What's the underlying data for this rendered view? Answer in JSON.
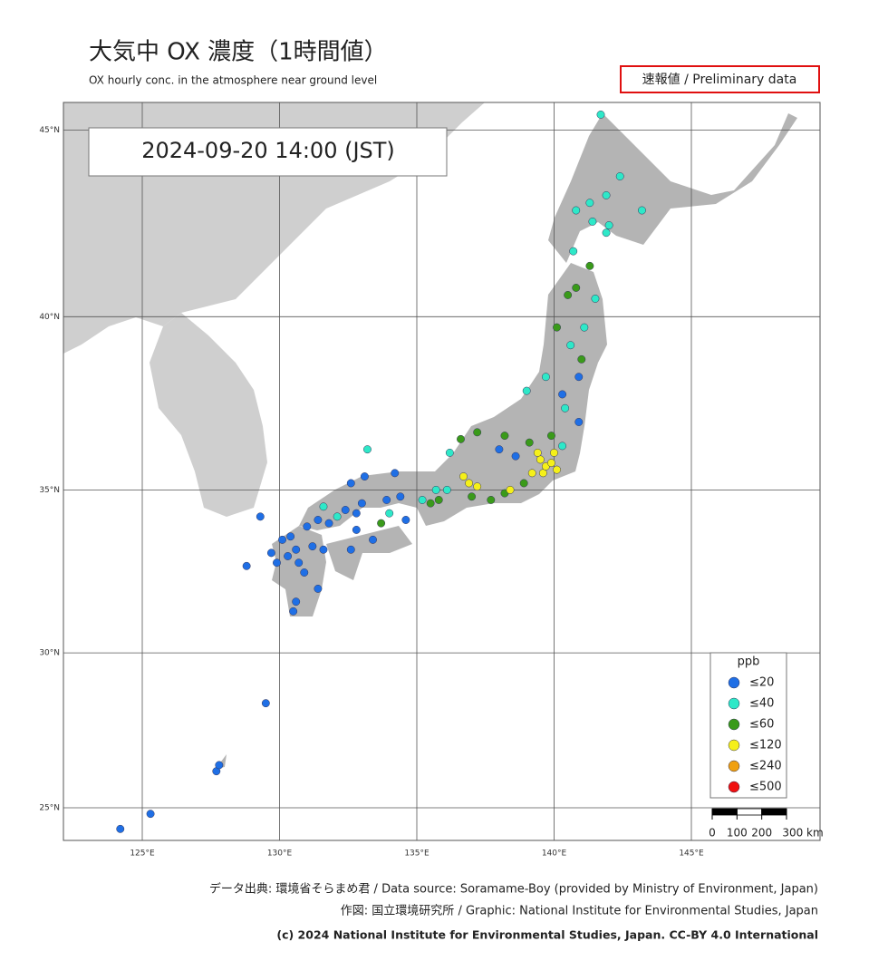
{
  "header": {
    "title": "大気中 OX 濃度（1時間値）",
    "subtitle": "OX hourly conc. in the atmosphere near ground level",
    "badge": "速報値 / Preliminary data"
  },
  "timestamp": "2024-09-20  14:00 (JST)",
  "map": {
    "lat_ticks": [
      {
        "value": 45,
        "label": "45°N"
      },
      {
        "value": 40,
        "label": "40°N"
      },
      {
        "value": 35,
        "label": "35°N"
      },
      {
        "value": 30,
        "label": "30°N"
      },
      {
        "value": 25,
        "label": "25°N"
      }
    ],
    "lon_ticks": [
      {
        "value": 125,
        "label": "125°E"
      },
      {
        "value": 130,
        "label": "130°E"
      },
      {
        "value": 135,
        "label": "135°E"
      },
      {
        "value": 140,
        "label": "140°E"
      },
      {
        "value": 145,
        "label": "145°E"
      }
    ],
    "grid": true,
    "stations": [
      [
        130.4,
        33.6,
        0
      ],
      [
        130.6,
        33.2,
        0
      ],
      [
        130.3,
        33.0,
        0
      ],
      [
        130.7,
        32.8,
        0
      ],
      [
        130.9,
        32.5,
        0
      ],
      [
        131.2,
        33.3,
        0
      ],
      [
        131.6,
        33.2,
        0
      ],
      [
        131.4,
        32.0,
        0
      ],
      [
        130.6,
        31.6,
        0
      ],
      [
        130.5,
        31.3,
        0
      ],
      [
        129.9,
        32.8,
        0
      ],
      [
        129.7,
        33.1,
        0
      ],
      [
        130.1,
        33.5,
        0
      ],
      [
        131.0,
        33.9,
        0
      ],
      [
        131.4,
        34.1,
        0
      ],
      [
        131.8,
        34.0,
        0
      ],
      [
        132.4,
        34.4,
        0
      ],
      [
        132.8,
        34.3,
        0
      ],
      [
        133.0,
        34.6,
        0
      ],
      [
        133.9,
        34.7,
        0
      ],
      [
        134.4,
        34.8,
        0
      ],
      [
        132.1,
        34.2,
        1
      ],
      [
        131.6,
        34.5,
        1
      ],
      [
        132.6,
        35.2,
        0
      ],
      [
        133.1,
        35.4,
        0
      ],
      [
        134.2,
        35.5,
        0
      ],
      [
        133.4,
        33.5,
        0
      ],
      [
        134.0,
        34.3,
        1
      ],
      [
        133.7,
        34.0,
        2
      ],
      [
        132.8,
        33.8,
        0
      ],
      [
        132.6,
        33.2,
        0
      ],
      [
        134.6,
        34.1,
        0
      ],
      [
        135.2,
        34.7,
        1
      ],
      [
        135.5,
        34.6,
        2
      ],
      [
        135.7,
        35.0,
        1
      ],
      [
        135.8,
        34.7,
        2
      ],
      [
        136.1,
        35.0,
        1
      ],
      [
        136.9,
        35.2,
        3
      ],
      [
        136.7,
        35.4,
        3
      ],
      [
        137.2,
        35.1,
        3
      ],
      [
        137.0,
        34.8,
        2
      ],
      [
        137.7,
        34.7,
        2
      ],
      [
        138.2,
        34.9,
        2
      ],
      [
        138.4,
        35.0,
        3
      ],
      [
        138.9,
        35.2,
        2
      ],
      [
        139.2,
        35.5,
        3
      ],
      [
        139.6,
        35.5,
        3
      ],
      [
        139.7,
        35.7,
        3
      ],
      [
        139.9,
        35.8,
        3
      ],
      [
        140.1,
        35.6,
        3
      ],
      [
        139.5,
        35.9,
        3
      ],
      [
        139.4,
        36.1,
        3
      ],
      [
        140.0,
        36.1,
        3
      ],
      [
        140.3,
        36.3,
        1
      ],
      [
        139.9,
        36.6,
        2
      ],
      [
        139.1,
        36.4,
        2
      ],
      [
        138.2,
        36.6,
        2
      ],
      [
        137.2,
        36.7,
        2
      ],
      [
        136.6,
        36.5,
        2
      ],
      [
        136.2,
        36.1,
        1
      ],
      [
        138.0,
        36.2,
        0
      ],
      [
        138.6,
        36.0,
        0
      ],
      [
        139.0,
        37.9,
        1
      ],
      [
        139.7,
        38.3,
        1
      ],
      [
        140.3,
        37.8,
        0
      ],
      [
        140.4,
        37.4,
        1
      ],
      [
        140.9,
        37.0,
        0
      ],
      [
        140.9,
        38.3,
        0
      ],
      [
        141.0,
        38.8,
        2
      ],
      [
        140.1,
        39.7,
        2
      ],
      [
        140.6,
        39.2,
        1
      ],
      [
        141.1,
        39.7,
        1
      ],
      [
        141.5,
        40.5,
        1
      ],
      [
        140.8,
        40.8,
        2
      ],
      [
        140.5,
        40.6,
        2
      ],
      [
        141.3,
        41.4,
        2
      ],
      [
        140.7,
        41.8,
        1
      ],
      [
        141.4,
        42.6,
        1
      ],
      [
        141.3,
        43.1,
        1
      ],
      [
        141.9,
        43.3,
        1
      ],
      [
        141.9,
        42.3,
        1
      ],
      [
        142.4,
        43.8,
        1
      ],
      [
        140.8,
        42.9,
        1
      ],
      [
        141.7,
        45.4,
        1
      ],
      [
        143.2,
        42.9,
        1
      ],
      [
        142.0,
        42.5,
        1
      ],
      [
        127.7,
        26.2,
        0
      ],
      [
        127.8,
        26.4,
        0
      ],
      [
        124.2,
        24.3,
        0
      ],
      [
        125.3,
        24.8,
        0
      ],
      [
        129.5,
        28.4,
        0
      ],
      [
        128.8,
        32.7,
        0
      ],
      [
        129.3,
        34.2,
        0
      ],
      [
        133.2,
        36.2,
        1
      ]
    ]
  },
  "legend": {
    "title": "ppb",
    "classes": [
      {
        "label": "≤20",
        "color": "#1f6fe5"
      },
      {
        "label": "≤40",
        "color": "#2ee8c8"
      },
      {
        "label": "≤60",
        "color": "#3a9a1a"
      },
      {
        "label": "≤120",
        "color": "#f5f01a"
      },
      {
        "label": "≤240",
        "color": "#f0a010"
      },
      {
        "label": "≤500",
        "color": "#f01010"
      }
    ]
  },
  "scale_bar": {
    "ticks": [
      0,
      100,
      200,
      {
        "value": 300,
        "label": "300 km"
      }
    ]
  },
  "footer": [
    "データ出典: 環境省そらまめ君 / Data source: Soramame-Boy (provided by Ministry of Environment, Japan)",
    "作図: 国立環境研究所 / Graphic: National Institute for Environmental Studies, Japan",
    "(c) 2024 National Institute for Environmental Studies, Japan. CC-BY 4.0 International"
  ]
}
